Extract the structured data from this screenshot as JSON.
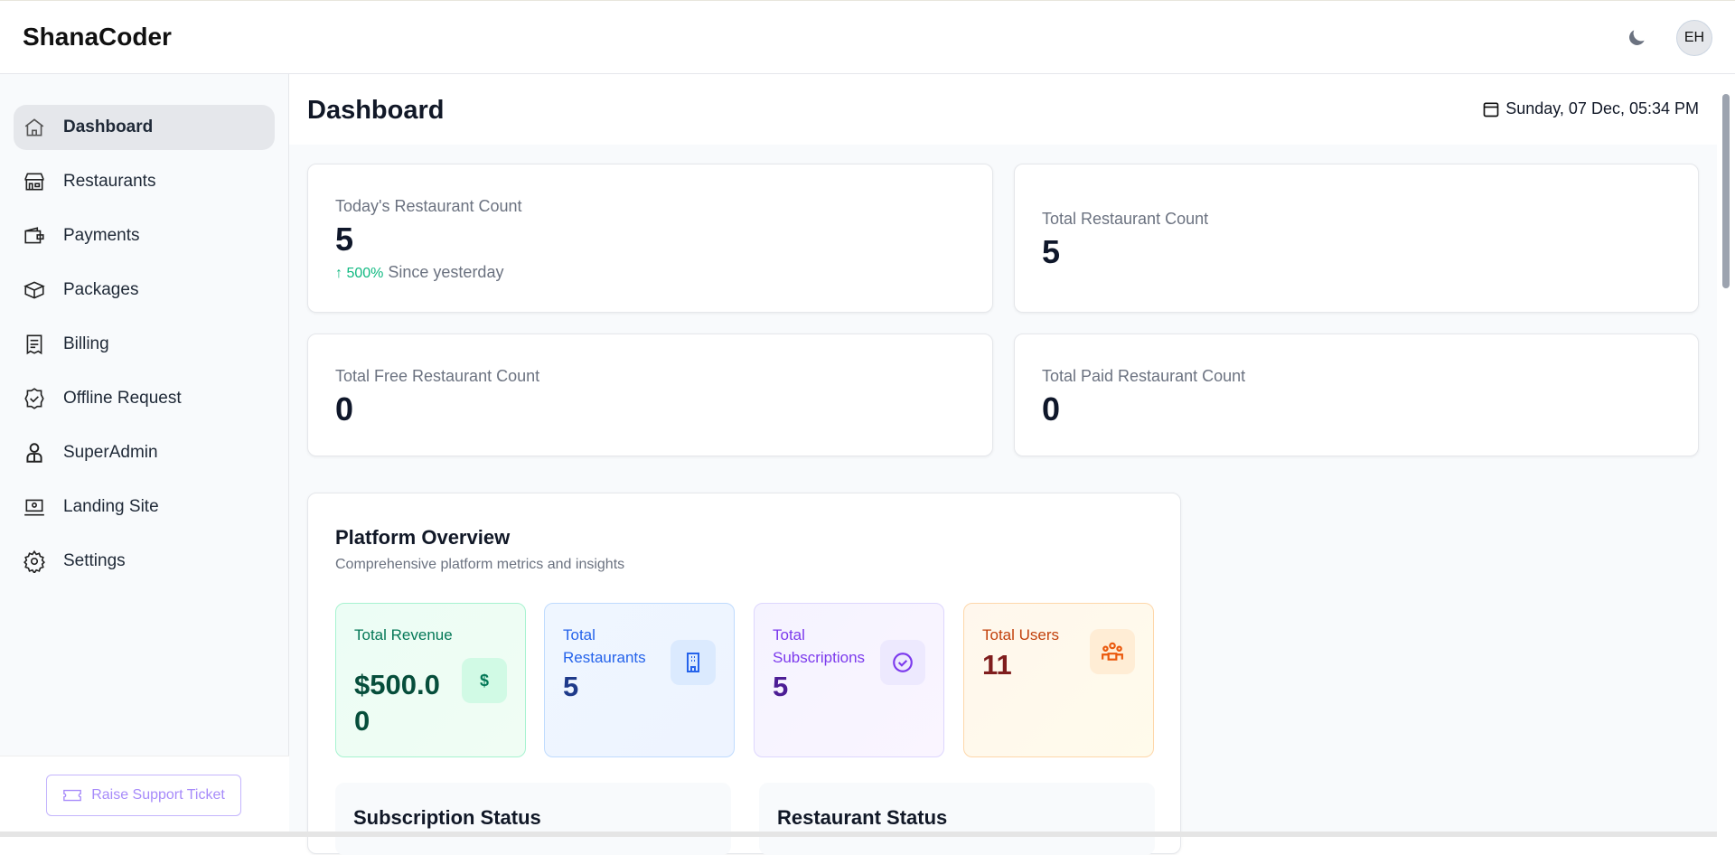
{
  "header": {
    "brand": "ShanaCoder",
    "avatar_initials": "EH",
    "theme_icon": "moon-icon"
  },
  "sidebar": {
    "items": [
      {
        "label": "Dashboard",
        "icon": "home-icon",
        "active": true
      },
      {
        "label": "Restaurants",
        "icon": "store-icon"
      },
      {
        "label": "Payments",
        "icon": "wallet-icon"
      },
      {
        "label": "Packages",
        "icon": "box-icon"
      },
      {
        "label": "Billing",
        "icon": "receipt-icon"
      },
      {
        "label": "Offline Request",
        "icon": "badge-check-icon"
      },
      {
        "label": "SuperAdmin",
        "icon": "user-icon"
      },
      {
        "label": "Landing Site",
        "icon": "laptop-icon"
      },
      {
        "label": "Settings",
        "icon": "gear-icon"
      }
    ],
    "support_button": "Raise Support Ticket"
  },
  "main": {
    "title": "Dashboard",
    "date": "Sunday, 07 Dec, 05:34 PM",
    "stats": [
      {
        "label": "Today's Restaurant Count",
        "value": "5",
        "trend": "500%",
        "trend_text": "Since yesterday"
      },
      {
        "label": "Total Restaurant Count",
        "value": "5"
      },
      {
        "label": "Total Free Restaurant Count",
        "value": "0"
      },
      {
        "label": "Total Paid Restaurant Count",
        "value": "0"
      }
    ],
    "overview": {
      "title": "Platform Overview",
      "subtitle": "Comprehensive platform metrics and insights",
      "metrics": [
        {
          "label": "Total Revenue",
          "value": "$500.00",
          "icon": "dollar-icon",
          "color": "#047857"
        },
        {
          "label": "Total Restaurants",
          "value": "5",
          "icon": "building-icon",
          "color": "#2563eb"
        },
        {
          "label": "Total Subscriptions",
          "value": "5",
          "icon": "check-circle-icon",
          "color": "#7c3aed"
        },
        {
          "label": "Total Users",
          "value": "11",
          "icon": "users-icon",
          "color": "#c2410c"
        }
      ],
      "sections": [
        "Subscription Status",
        "Restaurant Status"
      ]
    }
  }
}
